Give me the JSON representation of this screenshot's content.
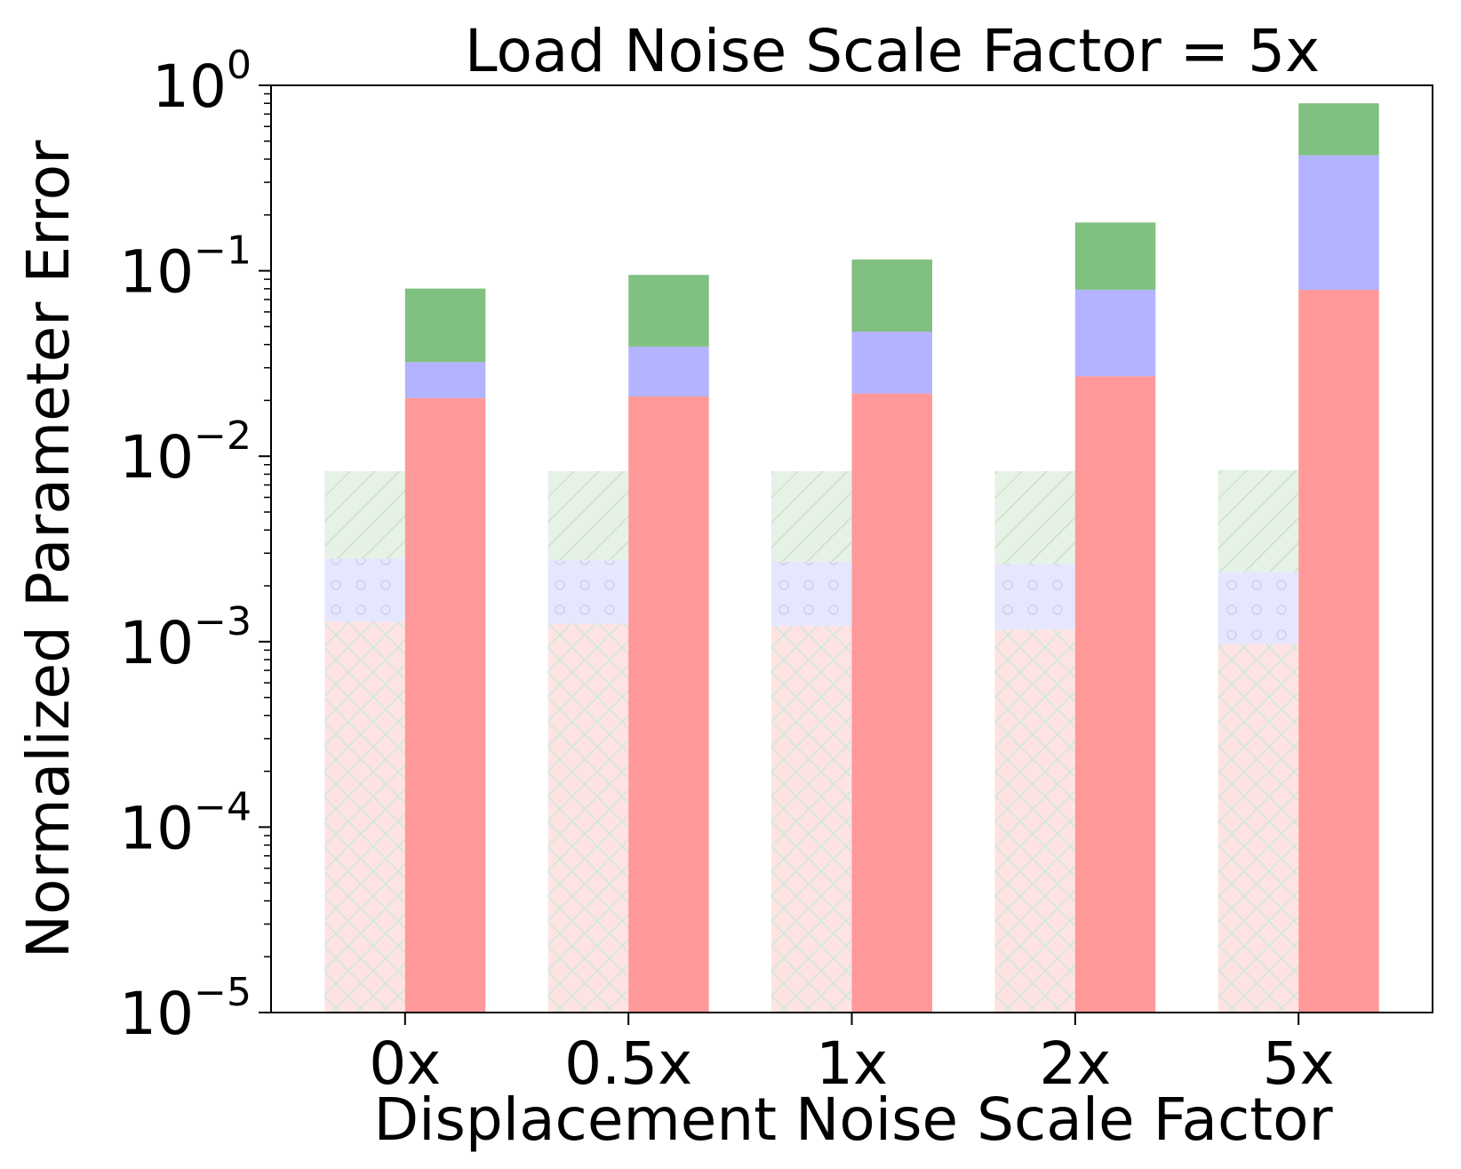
{
  "chart_data": {
    "type": "bar",
    "stacked": true,
    "title": "Load Noise Scale Factor = 5x",
    "xlabel": "Displacement Noise Scale Factor",
    "ylabel": "Normalized Parameter Error",
    "yscale": "log",
    "ylim": [
      1e-05,
      1
    ],
    "yticks": [
      {
        "value": 1,
        "base": "10",
        "exp": "0"
      },
      {
        "value": 0.1,
        "base": "10",
        "exp": "−1"
      },
      {
        "value": 0.01,
        "base": "10",
        "exp": "−2"
      },
      {
        "value": 0.001,
        "base": "10",
        "exp": "−3"
      },
      {
        "value": 0.0001,
        "base": "10",
        "exp": "−4"
      },
      {
        "value": 1e-05,
        "base": "10",
        "exp": "−5"
      }
    ],
    "categories": [
      "0x",
      "0.5x",
      "1x",
      "2x",
      "5x"
    ],
    "groups": [
      {
        "style": "hatched",
        "segments": [
          {
            "color": "#ffe3e3",
            "hatch": "cross",
            "tops": [
              0.00128,
              0.00125,
              0.00122,
              0.00116,
              0.00097
            ]
          },
          {
            "color": "#e6e6ff",
            "hatch": "circles",
            "tops": [
              0.0028,
              0.00275,
              0.0027,
              0.00262,
              0.00238
            ]
          },
          {
            "color": "#e5f2e5",
            "hatch": "diagonal",
            "tops": [
              0.0083,
              0.0083,
              0.0083,
              0.0083,
              0.0084
            ]
          }
        ]
      },
      {
        "style": "solid",
        "segments": [
          {
            "color": "#ff9999",
            "tops": [
              0.0206,
              0.021,
              0.0218,
              0.027,
              0.079
            ]
          },
          {
            "color": "#b3b3ff",
            "tops": [
              0.0322,
              0.039,
              0.047,
              0.079,
              0.42
            ]
          },
          {
            "color": "#80c080",
            "tops": [
              0.0802,
              0.095,
              0.115,
              0.182,
              0.8
            ]
          }
        ]
      }
    ],
    "grid": false,
    "legend": "none"
  }
}
